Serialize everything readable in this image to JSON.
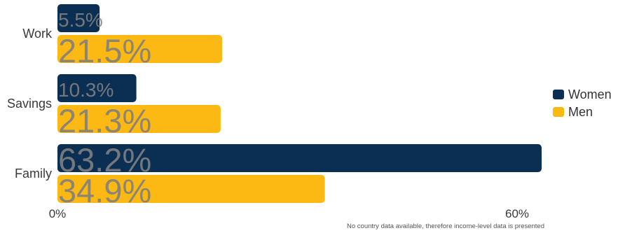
{
  "chart_data": {
    "type": "bar",
    "orientation": "horizontal",
    "categories": [
      "Work",
      "Savings",
      "Family"
    ],
    "series": [
      {
        "name": "Women",
        "color": "#0b2f52",
        "values": [
          5.5,
          10.3,
          63.2
        ],
        "labels": [
          "5.5%",
          "10.3%",
          "63.2%"
        ]
      },
      {
        "name": "Men",
        "color": "#fdb913",
        "values": [
          21.5,
          21.3,
          34.9
        ],
        "labels": [
          "21.5%",
          "21.3%",
          "34.9%"
        ]
      }
    ],
    "x_ticks": [
      {
        "value": 0,
        "label": "0%"
      },
      {
        "value": 60,
        "label": "60%"
      }
    ],
    "xlim": [
      0,
      63.2
    ],
    "legend": "right",
    "grid": false
  },
  "footnote": "No country data available, therefore income-level data is presented"
}
